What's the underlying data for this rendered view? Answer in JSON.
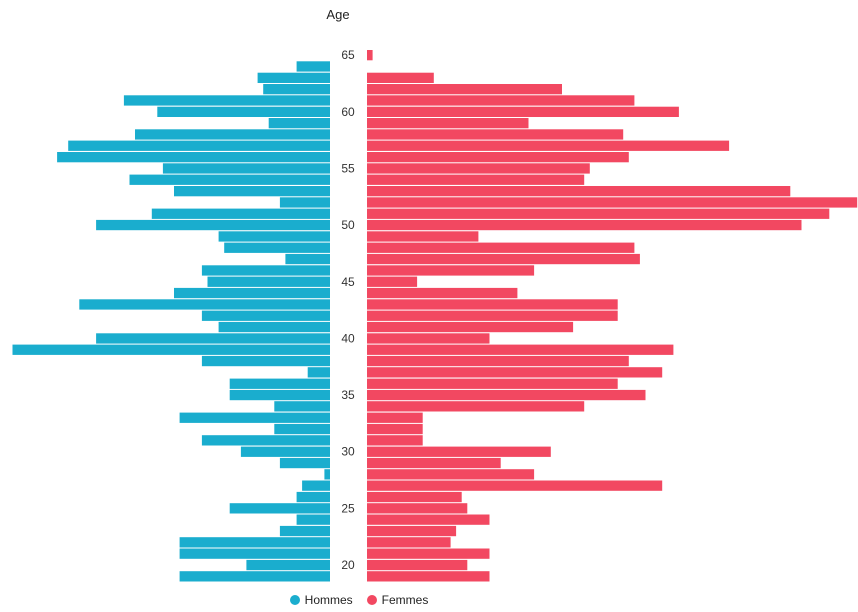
{
  "chart_data": {
    "type": "bar",
    "orientation": "horizontal-pyramid",
    "axis_title": "Age",
    "age_ticks": [
      "65",
      "60",
      "55",
      "50",
      "45",
      "40",
      "35",
      "30",
      "25",
      "20"
    ],
    "ages": [
      65,
      64,
      63,
      62,
      61,
      60,
      59,
      58,
      57,
      56,
      55,
      54,
      53,
      52,
      51,
      50,
      49,
      48,
      47,
      46,
      45,
      44,
      43,
      42,
      41,
      40,
      39,
      38,
      37,
      36,
      35,
      34,
      33,
      32,
      31,
      30,
      29,
      28,
      27,
      26,
      25,
      24,
      23,
      22,
      21,
      20,
      19
    ],
    "series": [
      {
        "name": "Hommes",
        "color": "#1aadce",
        "side": "left",
        "values": [
          0,
          6,
          13,
          12,
          37,
          31,
          11,
          35,
          47,
          49,
          30,
          36,
          28,
          9,
          32,
          42,
          20,
          19,
          8,
          23,
          22,
          28,
          45,
          23,
          20,
          42,
          57,
          23,
          4,
          18,
          18,
          10,
          27,
          10,
          23,
          16,
          9,
          1,
          5,
          6,
          18,
          6,
          9,
          27,
          27,
          15,
          27
        ]
      },
      {
        "name": "Femmes",
        "color": "#f24861",
        "side": "right",
        "values": [
          1,
          0,
          12,
          35,
          48,
          56,
          29,
          46,
          65,
          47,
          40,
          39,
          76,
          88,
          83,
          78,
          20,
          48,
          49,
          30,
          9,
          27,
          45,
          45,
          37,
          22,
          55,
          47,
          53,
          45,
          50,
          39,
          10,
          10,
          10,
          33,
          24,
          30,
          53,
          17,
          18,
          22,
          16,
          15,
          22,
          18,
          22
        ]
      }
    ]
  }
}
